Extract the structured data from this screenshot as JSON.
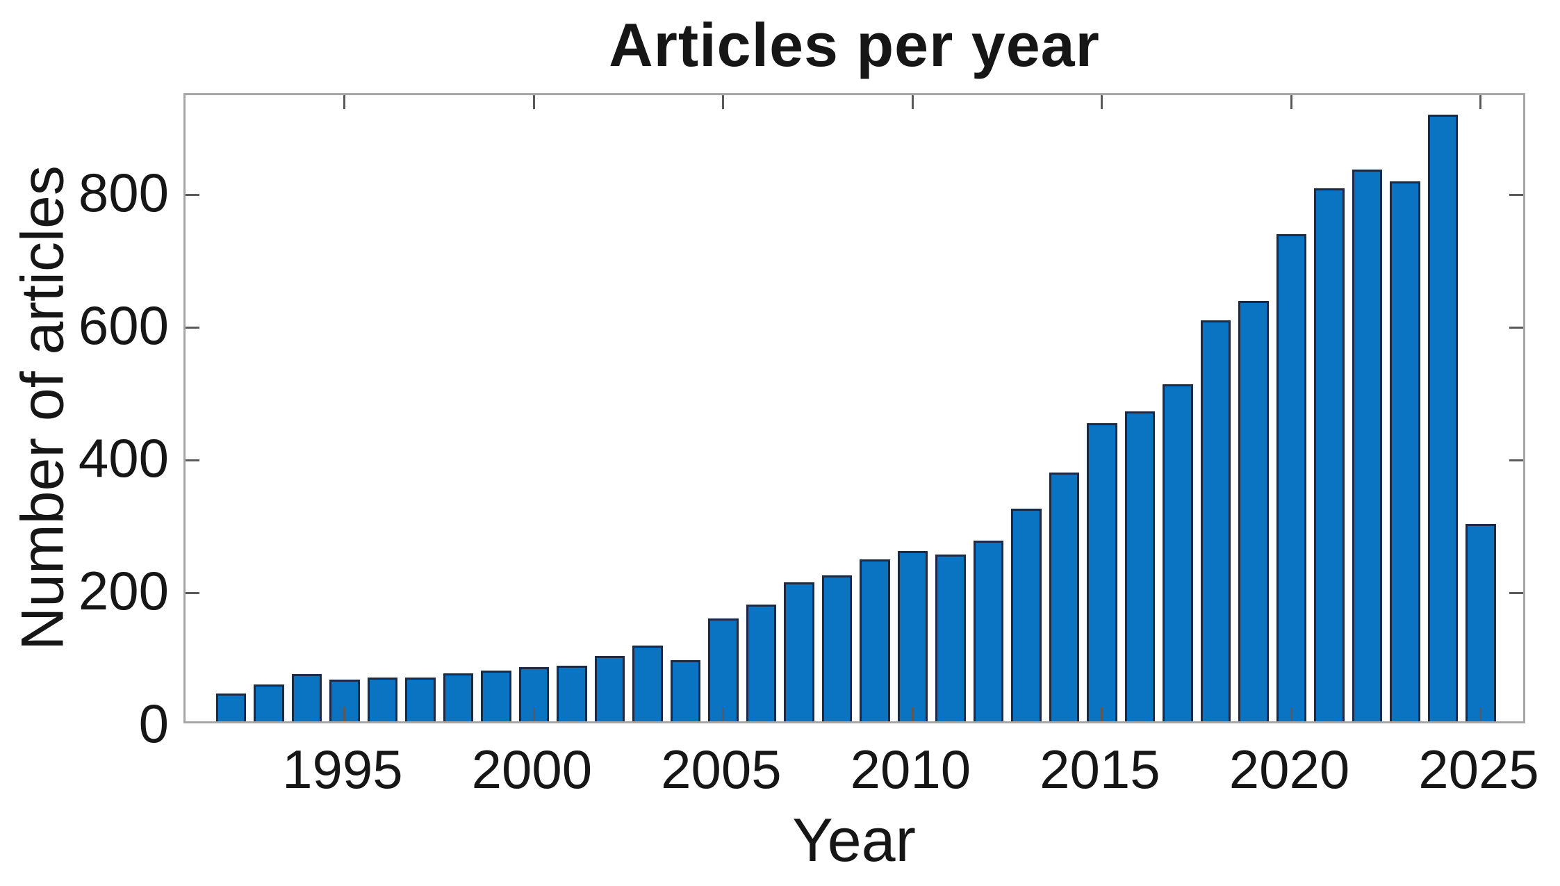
{
  "figure": {
    "background_color": "#ffffff",
    "text_color": "#161616"
  },
  "chart_data": {
    "type": "bar",
    "title": "Articles per year",
    "xlabel": "Year",
    "ylabel": "Number of articles",
    "categories": [
      1992,
      1993,
      1994,
      1995,
      1996,
      1997,
      1998,
      1999,
      2000,
      2001,
      2002,
      2003,
      2004,
      2005,
      2006,
      2007,
      2008,
      2009,
      2010,
      2011,
      2012,
      2013,
      2014,
      2015,
      2016,
      2017,
      2018,
      2019,
      2020,
      2021,
      2022,
      2023,
      2024,
      2025
    ],
    "values": [
      42,
      56,
      71,
      63,
      66,
      66,
      72,
      76,
      82,
      84,
      98,
      114,
      92,
      155,
      176,
      209,
      220,
      244,
      257,
      251,
      272,
      321,
      375,
      449,
      467,
      508,
      604,
      634,
      734,
      803,
      832,
      814,
      914,
      297
    ],
    "x_ticks": [
      1995,
      2000,
      2005,
      2010,
      2015,
      2020,
      2025
    ],
    "x_tick_labels": [
      "1995",
      "2000",
      "2005",
      "2010",
      "2015",
      "2020",
      "2025"
    ],
    "y_ticks": [
      0,
      200,
      400,
      600,
      800
    ],
    "y_tick_labels": [
      "0",
      "200",
      "400",
      "600",
      "800"
    ],
    "xlim": [
      1990.8,
      2026.23
    ],
    "ylim": [
      0,
      950
    ],
    "bar_width": 0.8,
    "grid": false,
    "legend": null,
    "bar_color": "#0b74c2",
    "bar_edge_color": "#1c2b45",
    "axis_color": "#a6a6a6",
    "tick_color": "#5a5a5a"
  }
}
